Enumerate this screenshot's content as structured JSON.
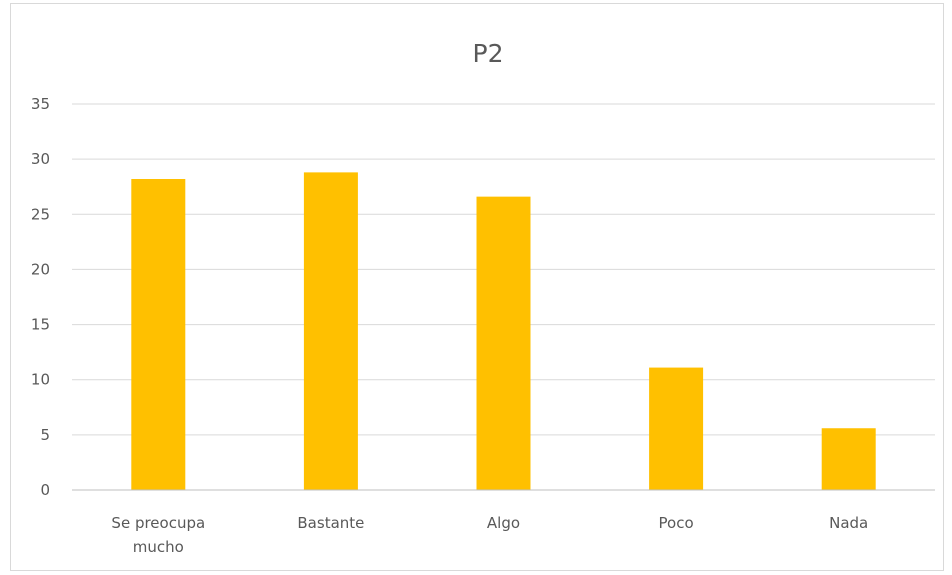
{
  "chart_data": {
    "type": "bar",
    "title": "P2",
    "categories": [
      [
        "Se preocupa",
        "mucho"
      ],
      [
        "Bastante"
      ],
      [
        "Algo"
      ],
      [
        "Poco"
      ],
      [
        "Nada"
      ]
    ],
    "values": [
      28.2,
      28.8,
      26.6,
      11.1,
      5.6
    ],
    "xlabel": "",
    "ylabel": "",
    "ylim": [
      0,
      35
    ],
    "yticks": [
      "0",
      "5",
      "10",
      "15",
      "20",
      "25",
      "30",
      "35"
    ],
    "grid": true,
    "legend": "none",
    "bar_color": "#FFC000",
    "grid_color": "#d9d9d9",
    "text_color": "#595959"
  }
}
